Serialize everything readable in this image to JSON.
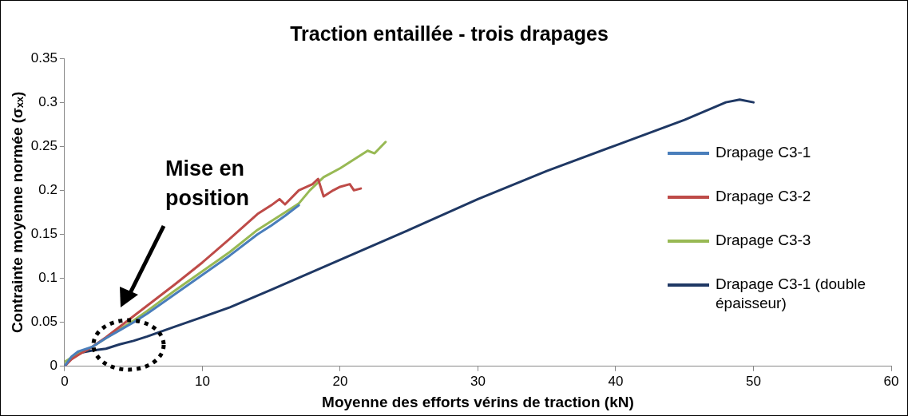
{
  "chart_data": {
    "type": "line",
    "title": "Traction entaillée - trois drapages",
    "xlabel": "Moyenne des efforts vérins de traction (kN)",
    "ylabel": "Contrainte moyenne normée (σₓₓ)",
    "xlim": [
      0,
      60
    ],
    "xticks": [
      0,
      10,
      20,
      30,
      40,
      50,
      60
    ],
    "ylim": [
      0,
      0.35
    ],
    "yticks": [
      0,
      0.05,
      0.1,
      0.15,
      0.2,
      0.25,
      0.3,
      0.35
    ],
    "grid": false,
    "legend": "right",
    "marker": "none",
    "line_style": "solid",
    "annotations": [
      "Mise en position"
    ],
    "series": [
      {
        "name": "Drapage C3-1",
        "color": "#4a7ebb",
        "x": [
          0,
          0.5,
          1,
          2,
          3,
          4,
          5,
          6,
          8,
          10,
          12,
          14,
          15,
          16,
          17
        ],
        "values": [
          0,
          0.011,
          0.017,
          0.022,
          0.032,
          0.041,
          0.05,
          0.06,
          0.082,
          0.104,
          0.126,
          0.15,
          0.16,
          0.171,
          0.183
        ]
      },
      {
        "name": "Drapage C3-2",
        "color": "#be4b48",
        "x": [
          0,
          0.5,
          1,
          2,
          3,
          4,
          5,
          6,
          8,
          10,
          12,
          14,
          15,
          15.6,
          16,
          17,
          18,
          18.4,
          18.8,
          19.5,
          20,
          20.7,
          21,
          21.5
        ],
        "values": [
          0,
          0.008,
          0.013,
          0.022,
          0.033,
          0.045,
          0.057,
          0.069,
          0.093,
          0.118,
          0.145,
          0.173,
          0.183,
          0.19,
          0.184,
          0.2,
          0.207,
          0.213,
          0.193,
          0.2,
          0.204,
          0.207,
          0.2,
          0.202
        ]
      },
      {
        "name": "Drapage C3-3",
        "color": "#98b954",
        "x": [
          0,
          0.5,
          1,
          2,
          3,
          4,
          5,
          6,
          8,
          10,
          12,
          14,
          16,
          17,
          17.8,
          18.8,
          20,
          21,
          22,
          22.5,
          23.3
        ],
        "values": [
          0.005,
          0.01,
          0.014,
          0.022,
          0.032,
          0.042,
          0.052,
          0.063,
          0.086,
          0.108,
          0.13,
          0.155,
          0.175,
          0.185,
          0.2,
          0.215,
          0.225,
          0.235,
          0.245,
          0.242,
          0.255
        ]
      },
      {
        "name": "Drapage C3-1 (double épaisseur)",
        "color": "#1f3864",
        "x": [
          0,
          0.5,
          1,
          2,
          3,
          4,
          5,
          6,
          8,
          10,
          12,
          15,
          20,
          25,
          30,
          35,
          40,
          45,
          48,
          49,
          50
        ],
        "values": [
          0,
          0.01,
          0.015,
          0.018,
          0.02,
          0.025,
          0.029,
          0.034,
          0.045,
          0.056,
          0.067,
          0.087,
          0.121,
          0.155,
          0.19,
          0.222,
          0.251,
          0.28,
          0.3,
          0.303,
          0.3
        ]
      }
    ]
  }
}
